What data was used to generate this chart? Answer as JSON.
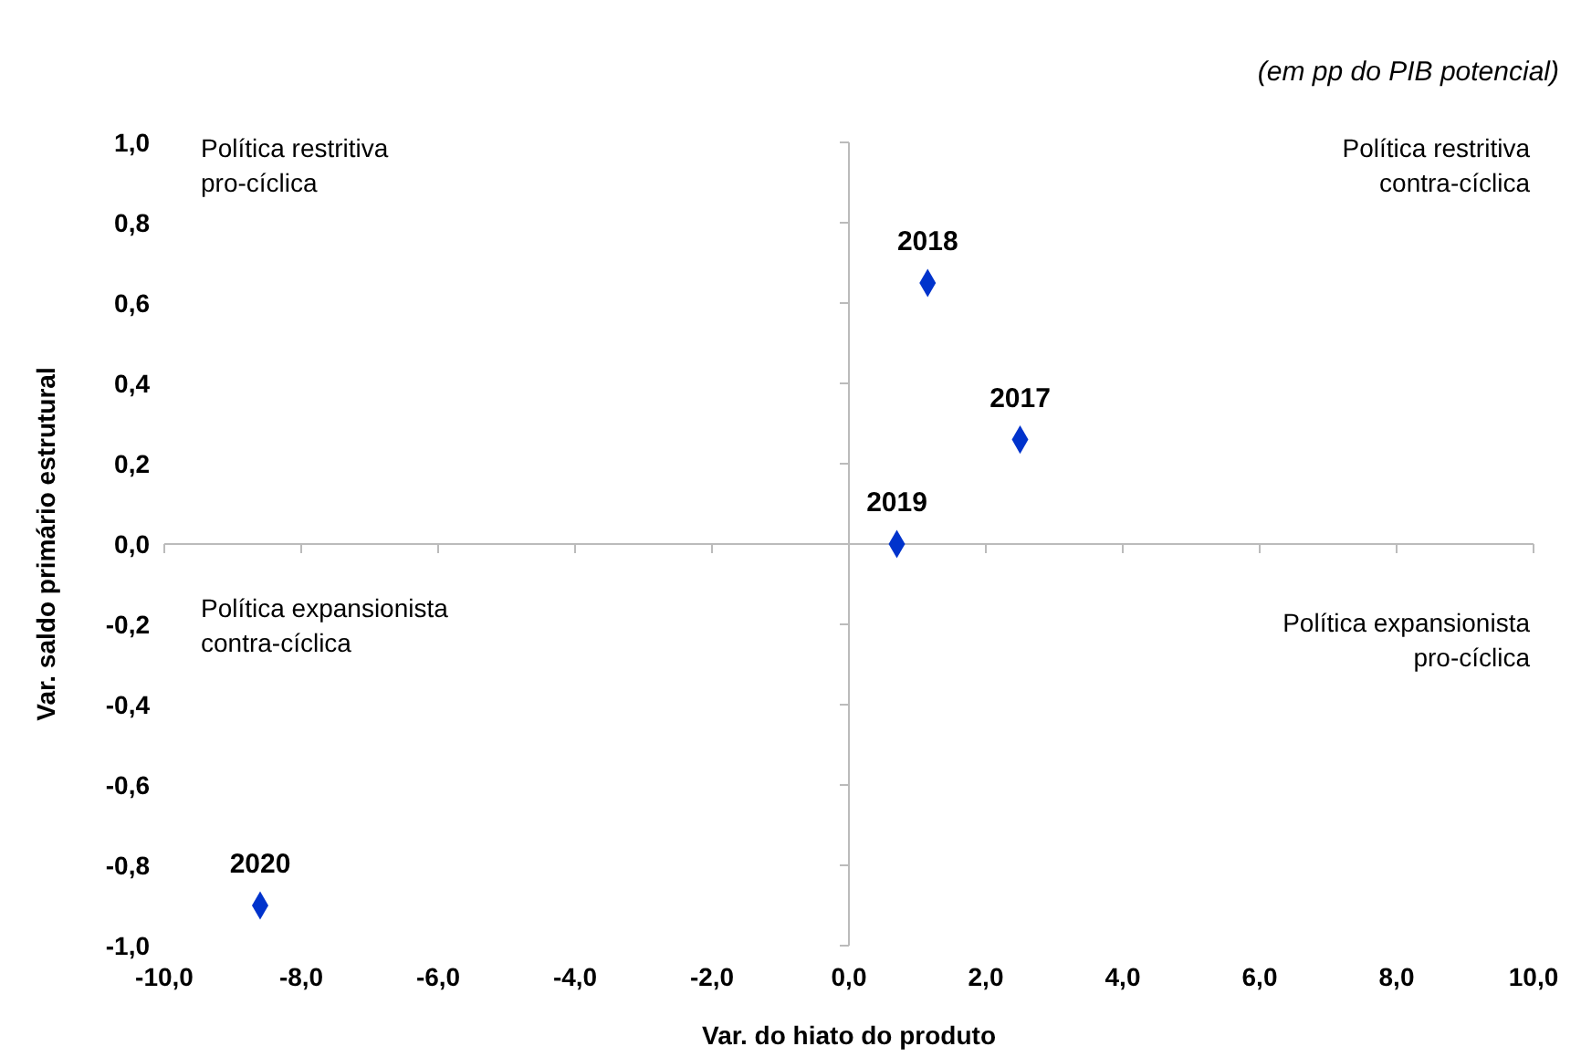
{
  "chart_data": {
    "type": "scatter",
    "subtitle": "(em pp do PIB potencial)",
    "xlabel": "Var. do hiato do produto",
    "ylabel": "Var. saldo primário estrutural",
    "marker": "diamond",
    "xlim": [
      -10,
      10
    ],
    "ylim": [
      -1,
      1
    ],
    "xticks": [
      {
        "value": -10,
        "label": "-10,0"
      },
      {
        "value": -8,
        "label": "-8,0"
      },
      {
        "value": -6,
        "label": "-6,0"
      },
      {
        "value": -4,
        "label": "-4,0"
      },
      {
        "value": -2,
        "label": "-2,0"
      },
      {
        "value": 0,
        "label": "0,0"
      },
      {
        "value": 2,
        "label": "2,0"
      },
      {
        "value": 4,
        "label": "4,0"
      },
      {
        "value": 6,
        "label": "6,0"
      },
      {
        "value": 8,
        "label": "8,0"
      },
      {
        "value": 10,
        "label": "10,0"
      }
    ],
    "yticks": [
      {
        "value": -1,
        "label": "-1,0"
      },
      {
        "value": -0.8,
        "label": "-0,8"
      },
      {
        "value": -0.6,
        "label": "-0,6"
      },
      {
        "value": -0.4,
        "label": "-0,4"
      },
      {
        "value": -0.2,
        "label": "-0,2"
      },
      {
        "value": 0,
        "label": "0,0"
      },
      {
        "value": 0.2,
        "label": "0,2"
      },
      {
        "value": 0.4,
        "label": "0,4"
      },
      {
        "value": 0.6,
        "label": "0,6"
      },
      {
        "value": 0.8,
        "label": "0,8"
      },
      {
        "value": 1,
        "label": "1,0"
      }
    ],
    "annotations": [
      "Política restritiva\npro-cíclica",
      "Política restritiva\ncontra-cíclica",
      "Política expansionista\ncontra-cíclica",
      "Política expansionista\npro-cíclica"
    ],
    "series": [
      {
        "name": "2017",
        "color": "#0033cc",
        "x": [
          2.5
        ],
        "values": [
          0.26
        ]
      },
      {
        "name": "2018",
        "color": "#0033cc",
        "x": [
          1.15
        ],
        "values": [
          0.65
        ]
      },
      {
        "name": "2019",
        "color": "#0033cc",
        "x": [
          0.7
        ],
        "values": [
          0.0
        ]
      },
      {
        "name": "2020",
        "color": "#0033cc",
        "x": [
          -8.6
        ],
        "values": [
          -0.9
        ]
      }
    ]
  }
}
